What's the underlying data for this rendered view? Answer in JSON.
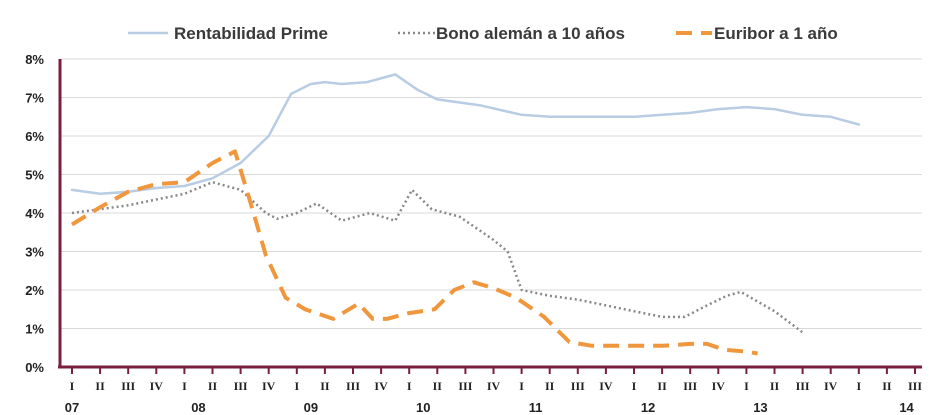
{
  "chart_data": {
    "type": "line",
    "title": "",
    "xlabel": "",
    "ylabel": "",
    "ylim": [
      0,
      8
    ],
    "y_ticks": [
      "0%",
      "1%",
      "2%",
      "3%",
      "4%",
      "5%",
      "6%",
      "7%",
      "8%"
    ],
    "grid": "horizontal",
    "legend_position": "top",
    "quarter_labels": [
      "I",
      "II",
      "III",
      "IV",
      "I",
      "II",
      "III",
      "IV",
      "I",
      "II",
      "III",
      "IV",
      "I",
      "II",
      "III",
      "IV",
      "I",
      "II",
      "III",
      "IV",
      "I",
      "II",
      "III",
      "IV",
      "I",
      "II",
      "III",
      "IV",
      "I",
      "II",
      "III"
    ],
    "year_labels": [
      {
        "label": "07",
        "quarter_index": 0
      },
      {
        "label": "08",
        "quarter_index": 4.5
      },
      {
        "label": "09",
        "quarter_index": 8.5
      },
      {
        "label": "10",
        "quarter_index": 12.5
      },
      {
        "label": "11",
        "quarter_index": 16.5
      },
      {
        "label": "12",
        "quarter_index": 20.5
      },
      {
        "label": "13",
        "quarter_index": 24.5
      },
      {
        "label": "14",
        "quarter_index": 29.7
      }
    ],
    "series": [
      {
        "name": "Rentabilidad Prime",
        "style": "solid",
        "color": "#b8cce4",
        "points": [
          [
            0,
            4.6
          ],
          [
            1,
            4.5
          ],
          [
            2,
            4.55
          ],
          [
            3,
            4.65
          ],
          [
            4,
            4.7
          ],
          [
            5,
            4.9
          ],
          [
            6,
            5.3
          ],
          [
            7,
            6.0
          ],
          [
            7.8,
            7.1
          ],
          [
            8.5,
            7.35
          ],
          [
            9,
            7.4
          ],
          [
            9.6,
            7.35
          ],
          [
            10.5,
            7.4
          ],
          [
            11.5,
            7.6
          ],
          [
            12.3,
            7.2
          ],
          [
            13,
            6.95
          ],
          [
            14.5,
            6.8
          ],
          [
            16,
            6.55
          ],
          [
            17,
            6.5
          ],
          [
            18,
            6.5
          ],
          [
            19,
            6.5
          ],
          [
            20,
            6.5
          ],
          [
            21,
            6.55
          ],
          [
            22,
            6.6
          ],
          [
            23,
            6.7
          ],
          [
            24,
            6.75
          ],
          [
            25,
            6.7
          ],
          [
            26,
            6.55
          ],
          [
            27,
            6.5
          ],
          [
            28,
            6.3
          ]
        ]
      },
      {
        "name": "Bono alemán a 10 años",
        "style": "dotted",
        "color": "#888888",
        "points": [
          [
            0,
            4.0
          ],
          [
            1,
            4.1
          ],
          [
            2,
            4.2
          ],
          [
            3,
            4.35
          ],
          [
            4,
            4.5
          ],
          [
            5,
            4.8
          ],
          [
            6,
            4.6
          ],
          [
            6.9,
            4.0
          ],
          [
            7.3,
            3.85
          ],
          [
            8,
            4.0
          ],
          [
            8.7,
            4.25
          ],
          [
            9.6,
            3.8
          ],
          [
            10.6,
            4.0
          ],
          [
            11.5,
            3.8
          ],
          [
            12.1,
            4.6
          ],
          [
            12.8,
            4.1
          ],
          [
            13.8,
            3.9
          ],
          [
            15,
            3.3
          ],
          [
            15.5,
            3.0
          ],
          [
            16,
            2.0
          ],
          [
            17,
            1.85
          ],
          [
            18,
            1.75
          ],
          [
            19,
            1.6
          ],
          [
            20,
            1.45
          ],
          [
            21,
            1.3
          ],
          [
            21.8,
            1.3
          ],
          [
            22.6,
            1.6
          ],
          [
            23.3,
            1.85
          ],
          [
            23.8,
            1.95
          ],
          [
            25,
            1.45
          ],
          [
            26,
            0.9
          ]
        ]
      },
      {
        "name": "Euribor a 1 año",
        "style": "dashed",
        "color": "#f0963c",
        "points": [
          [
            0,
            3.7
          ],
          [
            1,
            4.15
          ],
          [
            2,
            4.55
          ],
          [
            3,
            4.75
          ],
          [
            4,
            4.8
          ],
          [
            5,
            5.3
          ],
          [
            5.8,
            5.6
          ],
          [
            6.3,
            4.4
          ],
          [
            6.9,
            2.9
          ],
          [
            7.6,
            1.8
          ],
          [
            8.3,
            1.5
          ],
          [
            9.3,
            1.25
          ],
          [
            10.2,
            1.65
          ],
          [
            10.7,
            1.25
          ],
          [
            11.2,
            1.25
          ],
          [
            12,
            1.4
          ],
          [
            12.9,
            1.5
          ],
          [
            13.6,
            2.0
          ],
          [
            14.3,
            2.2
          ],
          [
            15,
            2.05
          ],
          [
            15.8,
            1.8
          ],
          [
            16.8,
            1.3
          ],
          [
            17.7,
            0.65
          ],
          [
            18.5,
            0.55
          ],
          [
            20,
            0.55
          ],
          [
            21,
            0.55
          ],
          [
            22,
            0.6
          ],
          [
            22.6,
            0.6
          ],
          [
            23.2,
            0.45
          ],
          [
            24,
            0.4
          ],
          [
            24.4,
            0.35
          ]
        ]
      }
    ]
  }
}
